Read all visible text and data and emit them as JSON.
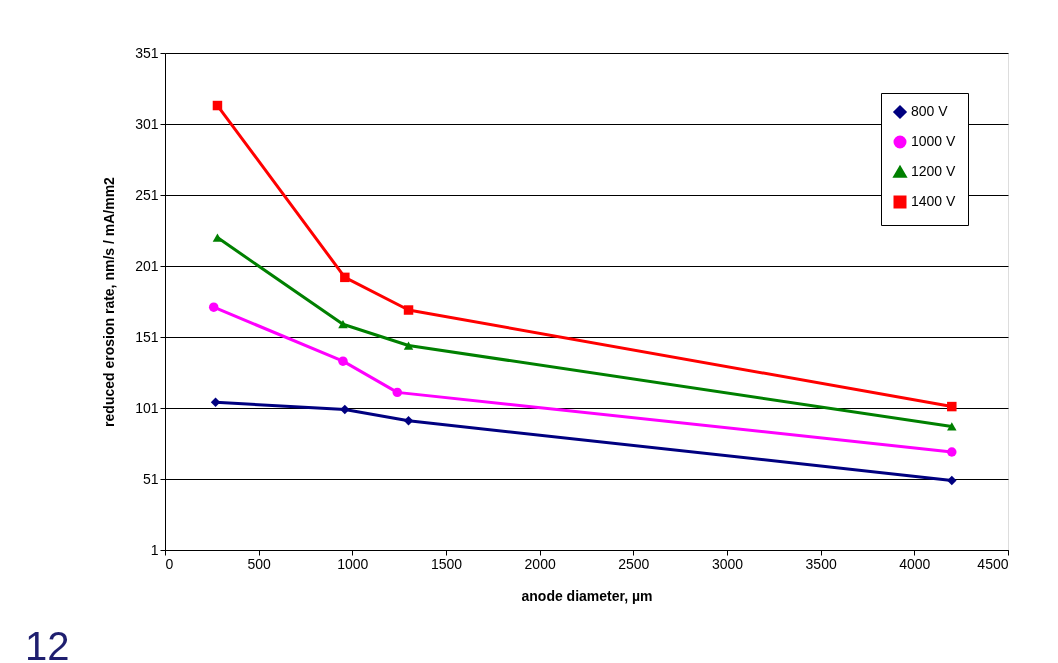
{
  "chart_data": {
    "type": "line",
    "xlabel": "anode diameter, µm",
    "ylabel": "reduced erosion rate, nm/s / mA/mm2",
    "xlim": [
      0,
      4500
    ],
    "xticks": [
      0,
      500,
      1000,
      1500,
      2000,
      2500,
      3000,
      3500,
      4000,
      4500
    ],
    "ylim": [
      1,
      351
    ],
    "yticks": [
      1,
      51,
      101,
      151,
      201,
      251,
      301,
      351
    ],
    "grid": "y",
    "legend": "top right",
    "annotations": [
      "12"
    ],
    "series": [
      {
        "name": "800 V",
        "color": "#000080",
        "marker": "diamond",
        "x": [
          270,
          960,
          1300,
          4200
        ],
        "values": [
          105,
          100,
          92,
          50
        ]
      },
      {
        "name": "1000 V",
        "color": "#ff00ff",
        "marker": "circle",
        "x": [
          260,
          950,
          1240,
          4200
        ],
        "values": [
          172,
          134,
          112,
          70
        ]
      },
      {
        "name": "1200 V",
        "color": "#008000",
        "marker": "triangle",
        "x": [
          280,
          950,
          1300,
          4200
        ],
        "values": [
          221,
          160,
          145,
          88
        ]
      },
      {
        "name": "1400 V",
        "color": "#ff0000",
        "marker": "square",
        "x": [
          280,
          960,
          1300,
          4200
        ],
        "values": [
          314,
          193,
          170,
          102
        ]
      }
    ]
  }
}
